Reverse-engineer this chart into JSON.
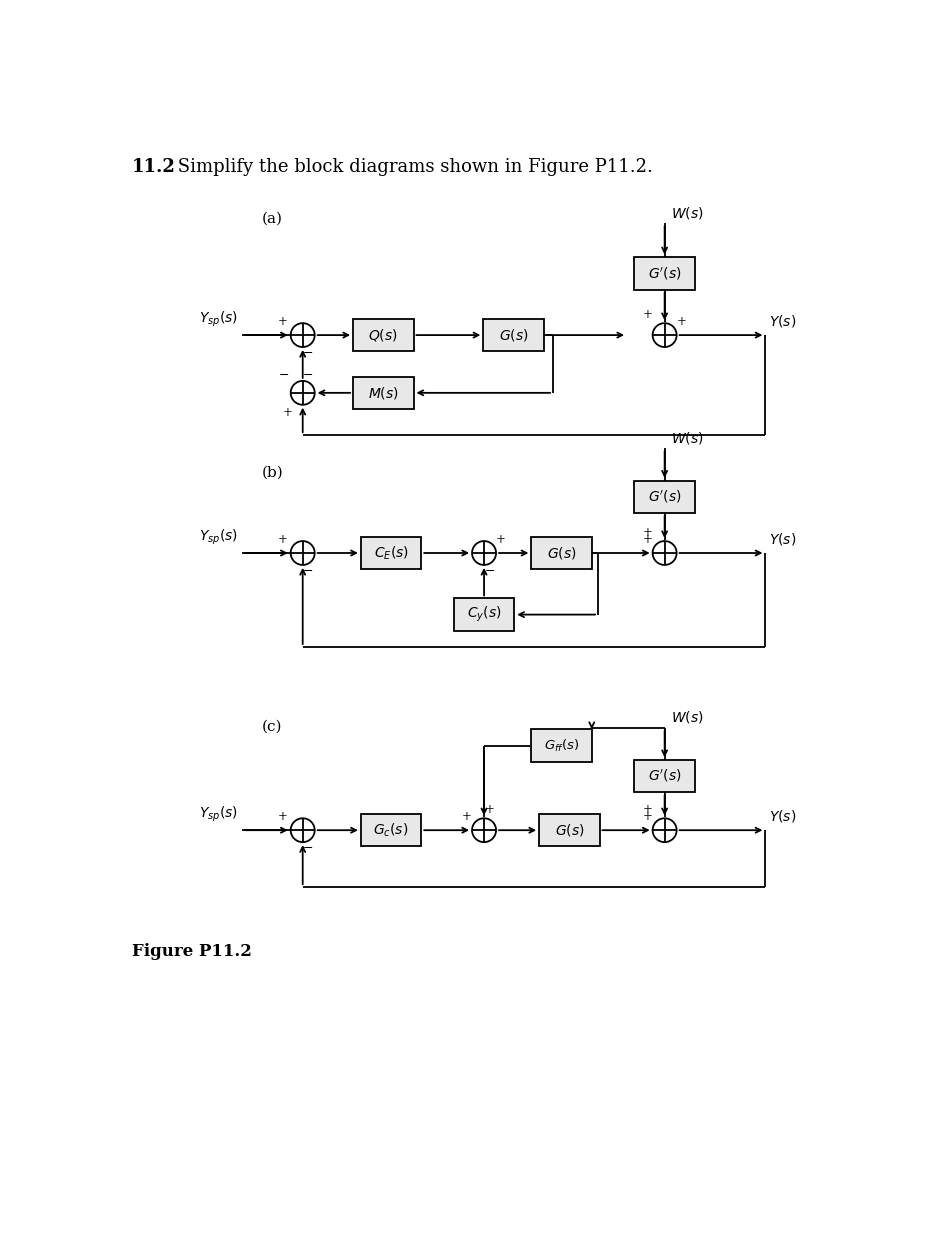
{
  "title_bold": "11.2",
  "title_rest": " Simplify the block diagrams shown in Figure P11.2.",
  "figure_label": "Figure P11.2",
  "bg_color": "#ffffff",
  "line_color": "#000000",
  "text_color": "#000000",
  "box_fill": "#e8e8e8"
}
